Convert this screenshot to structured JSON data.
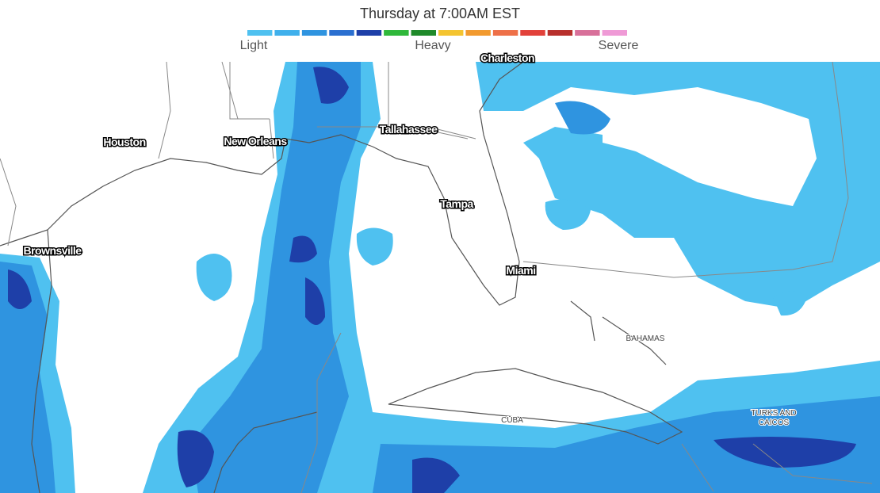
{
  "header": {
    "title": "Thursday at 7:00AM EST"
  },
  "legend": {
    "colors": [
      "#4fc1f0",
      "#3fb0ec",
      "#2f94e0",
      "#2a6fd0",
      "#1e3fa8",
      "#2fb83a",
      "#1f8a2a",
      "#f4c430",
      "#f29a2e",
      "#ee7048",
      "#e2413a",
      "#b8302c",
      "#d8709a",
      "#ef9ad6"
    ],
    "labels": [
      "Light",
      "Heavy",
      "Severe"
    ]
  },
  "map": {
    "cities": [
      "Charleston",
      "Houston",
      "New Orleans",
      "Tallahassee",
      "Tampa",
      "Brownsville",
      "Miami"
    ],
    "regions": [
      "BAHAMAS",
      "CUBA",
      "TURKS AND CAICOS"
    ]
  }
}
